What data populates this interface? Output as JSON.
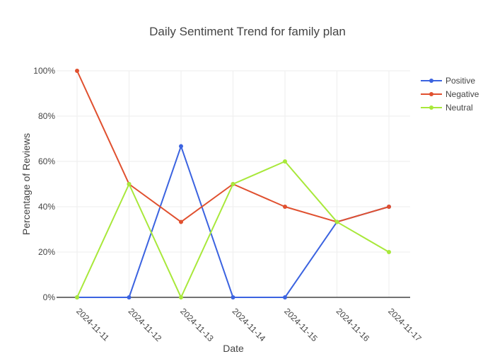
{
  "chart_data": {
    "type": "line",
    "title": "Daily Sentiment Trend for family plan",
    "xlabel": "Date",
    "ylabel": "Percentage of Reviews",
    "categories": [
      "2024-11-11",
      "2024-11-12",
      "2024-11-13",
      "2024-11-14",
      "2024-11-15",
      "2024-11-16",
      "2024-11-17"
    ],
    "y_ticks": [
      "0%",
      "20%",
      "40%",
      "60%",
      "80%",
      "100%"
    ],
    "ylim": [
      0,
      100
    ],
    "grid": true,
    "legend_position": "top-right",
    "series": [
      {
        "name": "Positive",
        "color": "#3b63e0",
        "values": [
          0,
          0,
          66.7,
          0,
          0,
          33.3,
          40
        ]
      },
      {
        "name": "Negative",
        "color": "#e0502f",
        "values": [
          100,
          50,
          33.3,
          50,
          40,
          33.3,
          40
        ]
      },
      {
        "name": "Neutral",
        "color": "#a8e83a",
        "values": [
          0,
          50,
          0,
          50,
          60,
          33.3,
          20
        ]
      }
    ]
  }
}
